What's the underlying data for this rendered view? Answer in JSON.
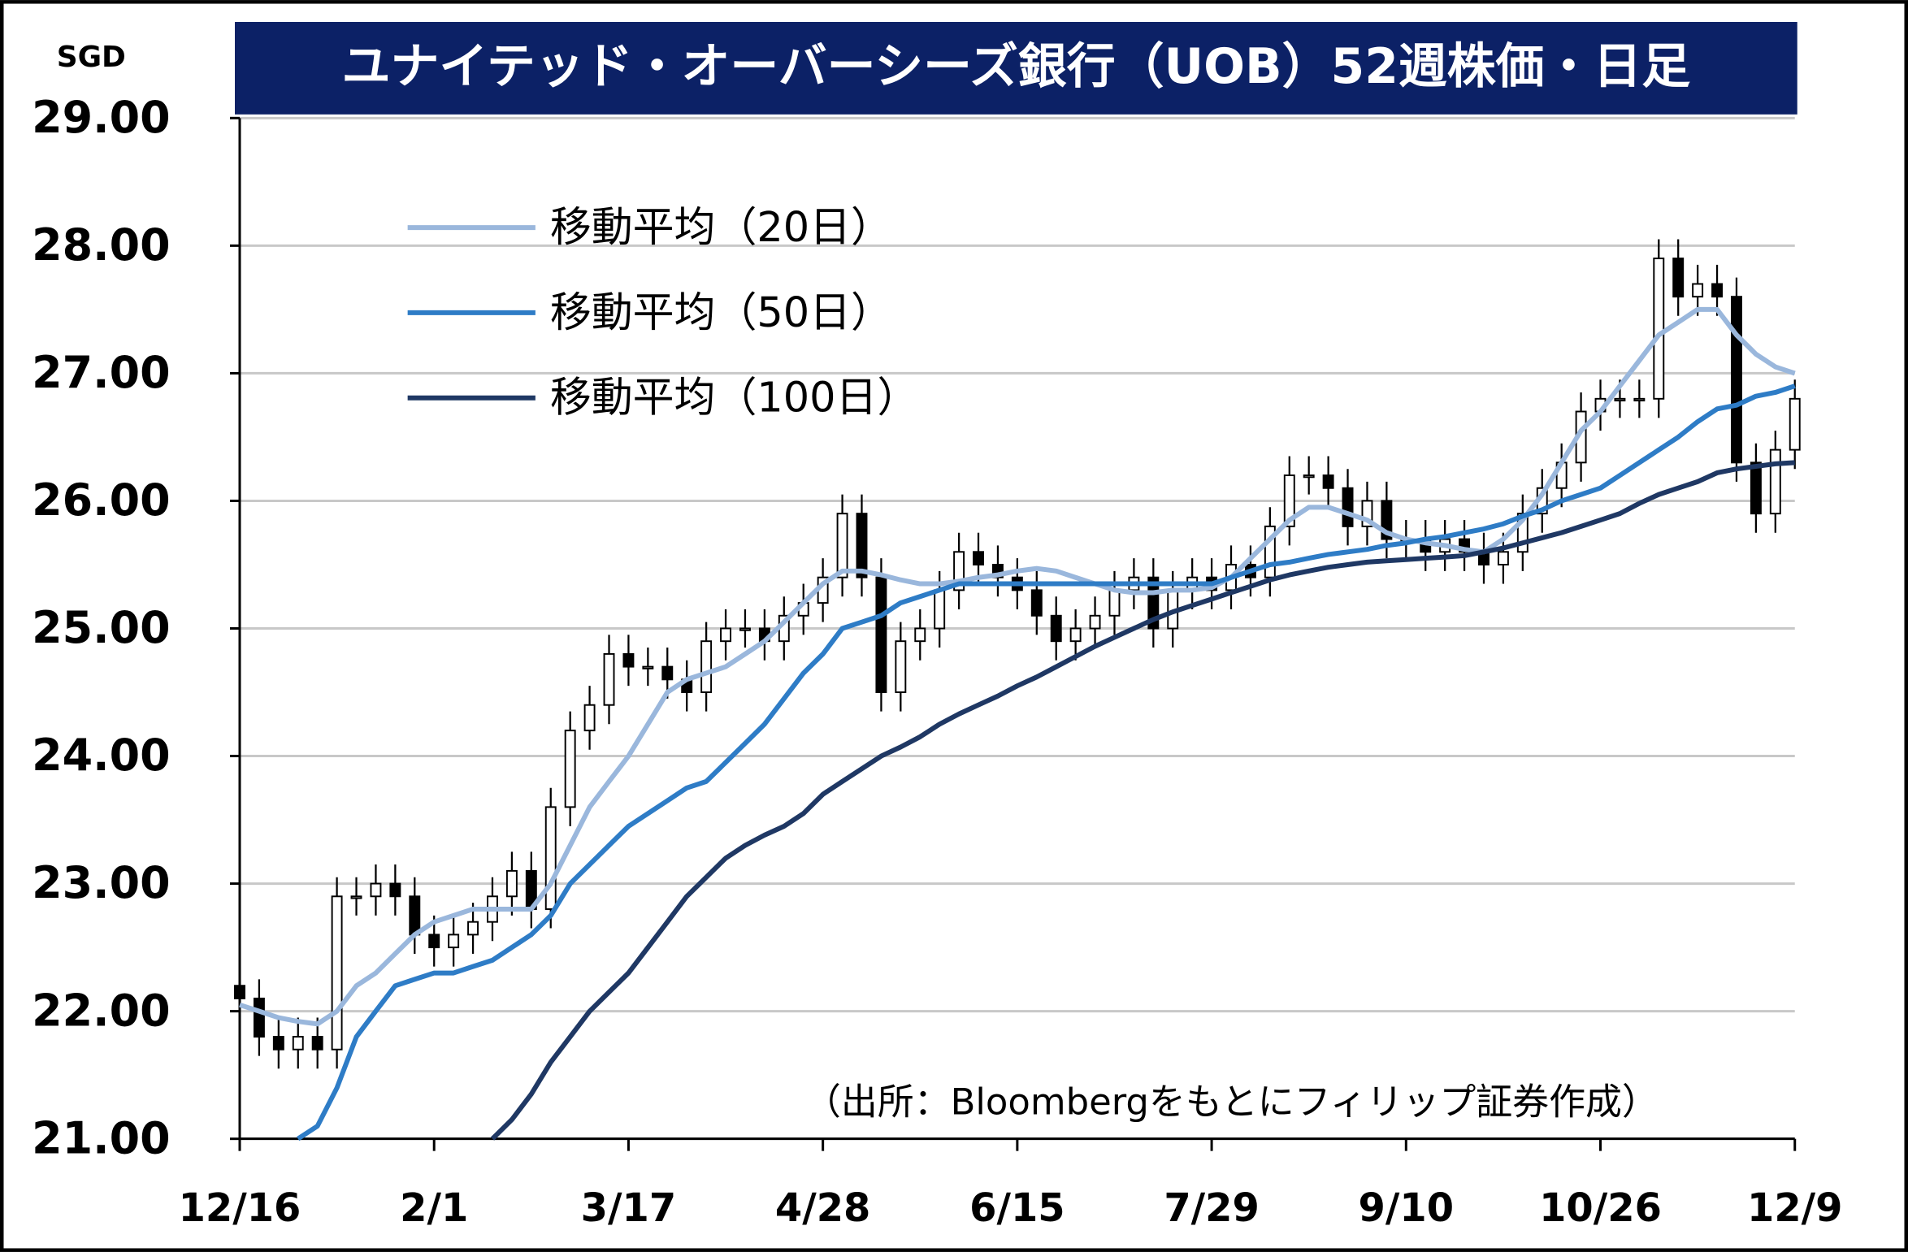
{
  "chart_data": {
    "type": "candlestick",
    "title": "ユナイテッド・オーバーシーズ銀行（UOB）52週株価・日足",
    "y_label": "SGD",
    "annotation": "（出所：Bloombergをもとにフィリップ証券作成）",
    "categories": [
      "12/16",
      null,
      null,
      null,
      null,
      null,
      null,
      null,
      null,
      null,
      "2/1",
      null,
      null,
      null,
      null,
      null,
      null,
      null,
      null,
      null,
      "3/17",
      null,
      null,
      null,
      null,
      null,
      null,
      null,
      null,
      null,
      "4/28",
      null,
      null,
      null,
      null,
      null,
      null,
      null,
      null,
      null,
      "6/15",
      null,
      null,
      null,
      null,
      null,
      null,
      null,
      null,
      null,
      "7/29",
      null,
      null,
      null,
      null,
      null,
      null,
      null,
      null,
      null,
      "9/10",
      null,
      null,
      null,
      null,
      null,
      null,
      null,
      null,
      null,
      "10/26",
      null,
      null,
      null,
      null,
      null,
      null,
      null,
      null,
      null,
      "12/9"
    ],
    "open": [
      22.2,
      22.1,
      21.8,
      21.7,
      21.8,
      21.7,
      22.9,
      22.9,
      23.0,
      22.9,
      22.6,
      22.5,
      22.6,
      22.7,
      22.9,
      23.1,
      22.8,
      23.6,
      24.2,
      24.4,
      24.8,
      24.7,
      24.7,
      24.6,
      24.5,
      24.9,
      25.0,
      25.0,
      24.9,
      25.1,
      25.2,
      25.4,
      25.9,
      25.4,
      24.5,
      24.9,
      25.0,
      25.3,
      25.6,
      25.5,
      25.4,
      25.3,
      25.1,
      24.9,
      25.0,
      25.1,
      25.3,
      25.4,
      25.0,
      25.3,
      25.4,
      25.3,
      25.5,
      25.4,
      25.8,
      26.2,
      26.2,
      26.1,
      25.8,
      26.0,
      25.7,
      25.7,
      25.6,
      25.7,
      25.6,
      25.5,
      25.6,
      25.9,
      26.1,
      26.3,
      26.7,
      26.8,
      26.8,
      26.8,
      27.9,
      27.6,
      27.7,
      27.6,
      26.3,
      25.9,
      26.4
    ],
    "high": [
      22.35,
      22.25,
      21.95,
      21.95,
      21.95,
      23.05,
      23.05,
      23.15,
      23.15,
      23.05,
      22.75,
      22.75,
      22.85,
      23.05,
      23.25,
      23.25,
      23.75,
      24.35,
      24.55,
      24.95,
      24.95,
      24.85,
      24.85,
      24.75,
      25.05,
      25.15,
      25.15,
      25.15,
      25.25,
      25.35,
      25.55,
      26.05,
      26.05,
      25.55,
      25.05,
      25.15,
      25.45,
      25.75,
      25.75,
      25.65,
      25.55,
      25.45,
      25.25,
      25.15,
      25.25,
      25.45,
      25.55,
      25.55,
      25.45,
      25.55,
      25.55,
      25.65,
      25.65,
      25.95,
      26.35,
      26.35,
      26.35,
      26.25,
      26.15,
      26.15,
      25.85,
      25.85,
      25.85,
      25.85,
      25.75,
      25.75,
      26.05,
      26.25,
      26.45,
      26.85,
      26.95,
      26.95,
      26.95,
      28.05,
      28.05,
      27.85,
      27.85,
      27.75,
      26.45,
      26.55,
      26.95
    ],
    "low": [
      21.95,
      21.65,
      21.55,
      21.55,
      21.55,
      21.55,
      22.75,
      22.75,
      22.75,
      22.45,
      22.35,
      22.35,
      22.45,
      22.55,
      22.75,
      22.65,
      22.65,
      23.45,
      24.05,
      24.25,
      24.55,
      24.55,
      24.45,
      24.35,
      24.35,
      24.75,
      24.85,
      24.75,
      24.75,
      24.95,
      25.05,
      25.25,
      25.25,
      24.35,
      24.35,
      24.75,
      24.85,
      25.15,
      25.35,
      25.25,
      25.15,
      24.95,
      24.75,
      24.75,
      24.85,
      24.95,
      25.15,
      24.85,
      24.85,
      25.15,
      25.15,
      25.15,
      25.25,
      25.25,
      25.65,
      26.05,
      25.95,
      25.65,
      25.65,
      25.55,
      25.55,
      25.45,
      25.45,
      25.45,
      25.35,
      25.35,
      25.45,
      25.75,
      25.95,
      26.15,
      26.55,
      26.65,
      26.65,
      26.65,
      27.45,
      27.45,
      27.45,
      26.15,
      25.75,
      25.75,
      26.25
    ],
    "close": [
      22.1,
      21.8,
      21.7,
      21.8,
      21.7,
      22.9,
      22.9,
      23.0,
      22.9,
      22.6,
      22.5,
      22.6,
      22.7,
      22.9,
      23.1,
      22.8,
      23.6,
      24.2,
      24.4,
      24.8,
      24.7,
      24.7,
      24.6,
      24.5,
      24.9,
      25.0,
      25.0,
      24.9,
      25.1,
      25.2,
      25.4,
      25.9,
      25.4,
      24.5,
      24.9,
      25.0,
      25.3,
      25.6,
      25.5,
      25.4,
      25.3,
      25.1,
      24.9,
      25.0,
      25.1,
      25.3,
      25.4,
      25.0,
      25.3,
      25.4,
      25.3,
      25.5,
      25.4,
      25.8,
      26.2,
      26.2,
      26.1,
      25.8,
      26.0,
      25.7,
      25.7,
      25.6,
      25.7,
      25.6,
      25.5,
      25.6,
      25.9,
      26.1,
      26.3,
      26.7,
      26.8,
      26.8,
      26.8,
      27.9,
      27.6,
      27.7,
      27.6,
      26.3,
      25.9,
      26.4,
      26.8
    ],
    "up_color": "#ffffff",
    "down_color": "#000000",
    "series": [
      {
        "name": "移動平均（20日）",
        "color": "#9ab7dc",
        "values": [
          22.05,
          22.0,
          21.95,
          21.92,
          21.9,
          22.0,
          22.2,
          22.3,
          22.45,
          22.6,
          22.7,
          22.75,
          22.8,
          22.8,
          22.8,
          22.8,
          23.0,
          23.3,
          23.6,
          23.8,
          24.0,
          24.25,
          24.5,
          24.6,
          24.65,
          24.7,
          24.8,
          24.9,
          25.05,
          25.2,
          25.35,
          25.45,
          25.45,
          25.42,
          25.38,
          25.35,
          25.35,
          25.37,
          25.4,
          25.42,
          25.45,
          25.47,
          25.45,
          25.4,
          25.35,
          25.3,
          25.28,
          25.28,
          25.3,
          25.3,
          25.32,
          25.4,
          25.55,
          25.7,
          25.85,
          25.95,
          25.95,
          25.9,
          25.85,
          25.75,
          25.7,
          25.67,
          25.65,
          25.62,
          25.6,
          25.7,
          25.85,
          26.05,
          26.3,
          26.55,
          26.7,
          26.9,
          27.1,
          27.3,
          27.4,
          27.5,
          27.5,
          27.3,
          27.15,
          27.05,
          27.0
        ]
      },
      {
        "name": "移動平均（50日）",
        "color": "#2e7cc6",
        "values": [
          null,
          null,
          null,
          21.0,
          21.1,
          21.4,
          21.8,
          22.0,
          22.2,
          22.25,
          22.3,
          22.3,
          22.35,
          22.4,
          22.5,
          22.6,
          22.75,
          23.0,
          23.15,
          23.3,
          23.45,
          23.55,
          23.65,
          23.75,
          23.8,
          23.95,
          24.1,
          24.25,
          24.45,
          24.65,
          24.8,
          25.0,
          25.05,
          25.1,
          25.2,
          25.25,
          25.3,
          25.35,
          25.35,
          25.35,
          25.35,
          25.35,
          25.35,
          25.35,
          25.35,
          25.35,
          25.35,
          25.35,
          25.35,
          25.35,
          25.35,
          25.4,
          25.45,
          25.5,
          25.52,
          25.55,
          25.58,
          25.6,
          25.62,
          25.65,
          25.67,
          25.7,
          25.72,
          25.75,
          25.78,
          25.82,
          25.88,
          25.93,
          26.0,
          26.05,
          26.1,
          26.2,
          26.3,
          26.4,
          26.5,
          26.62,
          26.72,
          26.75,
          26.82,
          26.85,
          26.9
        ]
      },
      {
        "name": "移動平均（100日）",
        "color": "#1f3864",
        "values": [
          null,
          null,
          null,
          null,
          null,
          null,
          null,
          null,
          null,
          null,
          null,
          null,
          null,
          21.0,
          21.15,
          21.35,
          21.6,
          21.8,
          22.0,
          22.15,
          22.3,
          22.5,
          22.7,
          22.9,
          23.05,
          23.2,
          23.3,
          23.38,
          23.45,
          23.55,
          23.7,
          23.8,
          23.9,
          24.0,
          24.07,
          24.15,
          24.25,
          24.33,
          24.4,
          24.47,
          24.55,
          24.62,
          24.7,
          24.78,
          24.86,
          24.93,
          25.0,
          25.07,
          25.13,
          25.18,
          25.23,
          25.28,
          25.33,
          25.38,
          25.42,
          25.45,
          25.48,
          25.5,
          25.52,
          25.53,
          25.54,
          25.55,
          25.56,
          25.57,
          25.6,
          25.63,
          25.67,
          25.71,
          25.75,
          25.8,
          25.85,
          25.9,
          25.98,
          26.05,
          26.1,
          26.15,
          26.22,
          26.25,
          26.27,
          26.29,
          26.3
        ]
      }
    ],
    "ylim": [
      21,
      29
    ],
    "yticks": [
      {
        "value": 21,
        "label": "21.00"
      },
      {
        "value": 22,
        "label": "22.00"
      },
      {
        "value": 23,
        "label": "23.00"
      },
      {
        "value": 24,
        "label": "24.00"
      },
      {
        "value": 25,
        "label": "25.00"
      },
      {
        "value": 26,
        "label": "26.00"
      },
      {
        "value": 27,
        "label": "27.00"
      },
      {
        "value": 28,
        "label": "28.00"
      },
      {
        "value": 29,
        "label": "29.00"
      }
    ],
    "grid": true,
    "legend": "upper left"
  }
}
